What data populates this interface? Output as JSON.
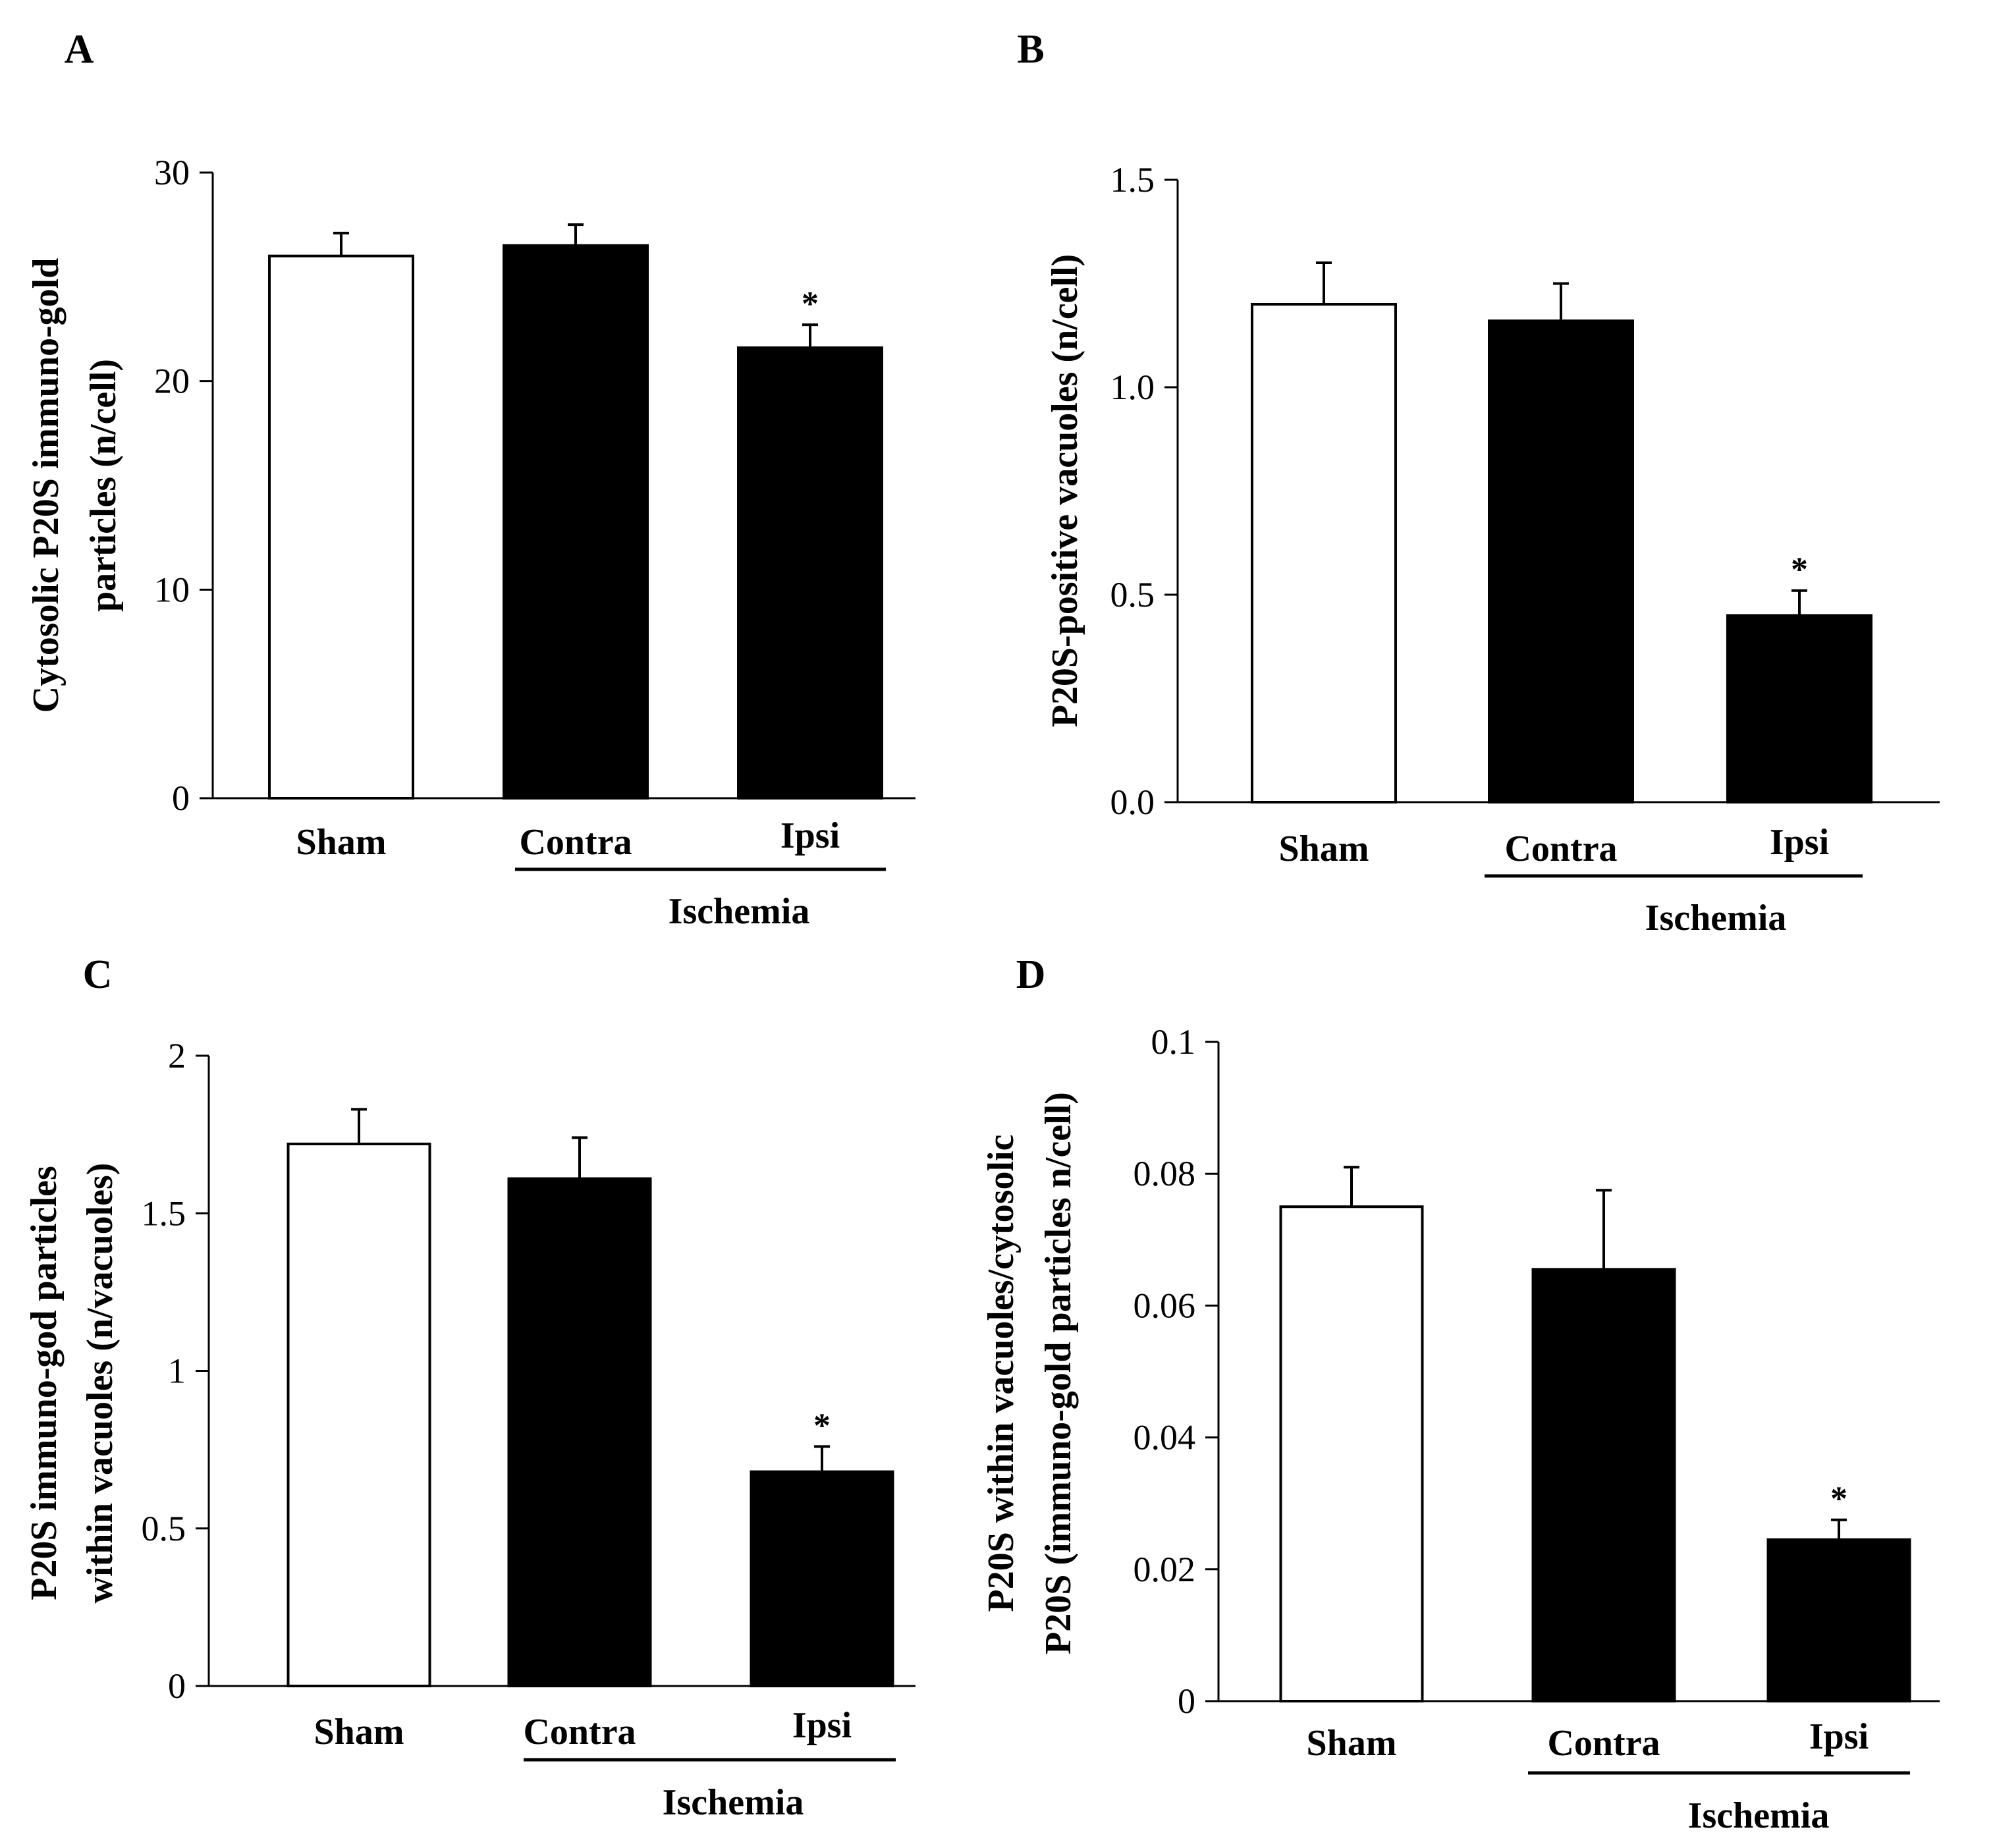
{
  "figure": {
    "group_label": "Ischemia",
    "significance_marker": "*",
    "colors": {
      "sham": "#ffffff",
      "ischemia": "#000000",
      "axis": "#000000"
    }
  },
  "chart_data": [
    {
      "panel": "A",
      "type": "bar",
      "categories": [
        "Sham",
        "Contra",
        "Ipsi"
      ],
      "values": [
        26.0,
        26.5,
        21.6
      ],
      "errors": [
        1.1,
        1.0,
        1.1
      ],
      "significant": [
        false,
        false,
        true
      ],
      "ylabel": [
        "Cytosolic P20S immuno-gold",
        "particles (n/cell)"
      ],
      "ylim": [
        0,
        30
      ],
      "yticks": [
        "0",
        "10",
        "20",
        "30"
      ]
    },
    {
      "panel": "B",
      "type": "bar",
      "categories": [
        "Sham",
        "Contra",
        "Ipsi"
      ],
      "values": [
        1.2,
        1.16,
        0.45
      ],
      "errors": [
        0.1,
        0.09,
        0.06
      ],
      "significant": [
        false,
        false,
        true
      ],
      "ylabel": [
        "P20S-positive vacuoles (n/cell)"
      ],
      "ylim": [
        0,
        1.5
      ],
      "yticks": [
        "0.0",
        "0.5",
        "1.0",
        "1.5"
      ]
    },
    {
      "panel": "C",
      "type": "bar",
      "categories": [
        "Sham",
        "Contra",
        "Ipsi"
      ],
      "values": [
        1.72,
        1.61,
        0.68
      ],
      "errors": [
        0.11,
        0.13,
        0.08
      ],
      "significant": [
        false,
        false,
        true
      ],
      "ylabel": [
        "P20S immuno-god particles",
        "within vacuoles (n/vacuoles)"
      ],
      "ylim": [
        0,
        2
      ],
      "yticks": [
        "0",
        "0.5",
        "1",
        "1.5",
        "2"
      ]
    },
    {
      "panel": "D",
      "type": "bar",
      "categories": [
        "Sham",
        "Contra",
        "Ipsi"
      ],
      "values": [
        0.075,
        0.0655,
        0.0245
      ],
      "errors": [
        0.006,
        0.012,
        0.003
      ],
      "significant": [
        false,
        false,
        true
      ],
      "ylabel": [
        "P20S within vacuoles/cytosolic",
        "P20S (immuno-gold particles n/cell)"
      ],
      "ylim": [
        0,
        0.1
      ],
      "yticks": [
        "0",
        "0.02",
        "0.04",
        "0.06",
        "0.08",
        "0.1"
      ]
    }
  ]
}
